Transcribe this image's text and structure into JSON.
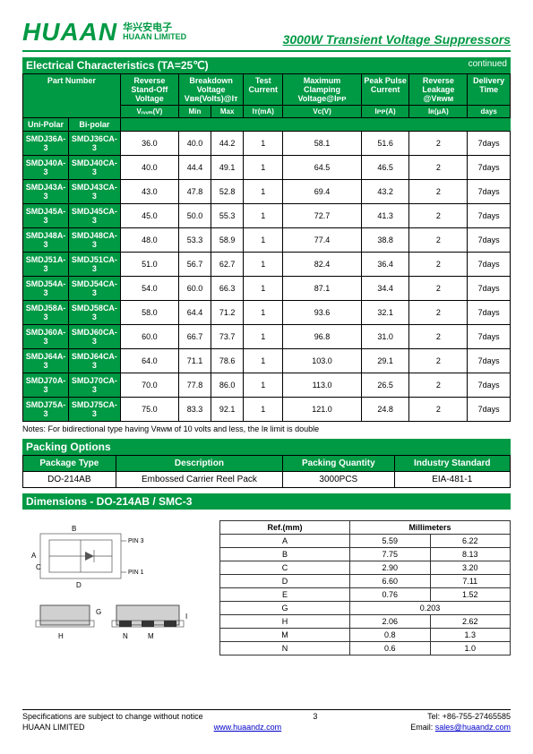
{
  "header": {
    "logo": "HUAAN",
    "cn": "华兴安电子",
    "en": "HUAAN LIMITED",
    "title": "3000W Transient Voltage Suppressors"
  },
  "elec": {
    "sectionTitle": "Electrical  Characteristics  (TA=25℃)",
    "continued": "continued",
    "headers": {
      "partNumber": "Part  Number",
      "uniPolar": "Uni-Polar",
      "biPolar": "Bi-polar",
      "reverseStandoff": "Reverse Stand-Off Voltage",
      "vrwm": "Vᵣᵥᵥₘ(V)",
      "breakdown": "Breakdown Voltage",
      "vbr": "Vʙʀ(Volts)@Iᴛ",
      "min": "Min",
      "max": "Max",
      "testCurrent": "Test Current",
      "it": "Iᴛ(mA)",
      "maxClamp": "Maximum Clamping Voltage@Iᴘᴘ",
      "vc": "Vᴄ(V)",
      "peakPulse": "Peak Pulse Current",
      "ipp": "Iᴘᴘ(A)",
      "reverseLeakage": "Reverse Leakage @Vʀᴡᴍ",
      "ir": "Iʀ(μA)",
      "delivery": "Delivery Time",
      "days": "days"
    },
    "rows": [
      {
        "uni": "SMDJ36A-3",
        "bi": "SMDJ36CA-3",
        "v": "36.0",
        "min": "40.0",
        "max": "44.2",
        "it": "1",
        "vc": "58.1",
        "ipp": "51.6",
        "ir": "2",
        "d": "7days"
      },
      {
        "uni": "SMDJ40A-3",
        "bi": "SMDJ40CA-3",
        "v": "40.0",
        "min": "44.4",
        "max": "49.1",
        "it": "1",
        "vc": "64.5",
        "ipp": "46.5",
        "ir": "2",
        "d": "7days"
      },
      {
        "uni": "SMDJ43A-3",
        "bi": "SMDJ43CA-3",
        "v": "43.0",
        "min": "47.8",
        "max": "52.8",
        "it": "1",
        "vc": "69.4",
        "ipp": "43.2",
        "ir": "2",
        "d": "7days"
      },
      {
        "uni": "SMDJ45A-3",
        "bi": "SMDJ45CA-3",
        "v": "45.0",
        "min": "50.0",
        "max": "55.3",
        "it": "1",
        "vc": "72.7",
        "ipp": "41.3",
        "ir": "2",
        "d": "7days"
      },
      {
        "uni": "SMDJ48A-3",
        "bi": "SMDJ48CA-3",
        "v": "48.0",
        "min": "53.3",
        "max": "58.9",
        "it": "1",
        "vc": "77.4",
        "ipp": "38.8",
        "ir": "2",
        "d": "7days"
      },
      {
        "uni": "SMDJ51A-3",
        "bi": "SMDJ51CA-3",
        "v": "51.0",
        "min": "56.7",
        "max": "62.7",
        "it": "1",
        "vc": "82.4",
        "ipp": "36.4",
        "ir": "2",
        "d": "7days"
      },
      {
        "uni": "SMDJ54A-3",
        "bi": "SMDJ54CA-3",
        "v": "54.0",
        "min": "60.0",
        "max": "66.3",
        "it": "1",
        "vc": "87.1",
        "ipp": "34.4",
        "ir": "2",
        "d": "7days"
      },
      {
        "uni": "SMDJ58A-3",
        "bi": "SMDJ58CA-3",
        "v": "58.0",
        "min": "64.4",
        "max": "71.2",
        "it": "1",
        "vc": "93.6",
        "ipp": "32.1",
        "ir": "2",
        "d": "7days"
      },
      {
        "uni": "SMDJ60A-3",
        "bi": "SMDJ60CA-3",
        "v": "60.0",
        "min": "66.7",
        "max": "73.7",
        "it": "1",
        "vc": "96.8",
        "ipp": "31.0",
        "ir": "2",
        "d": "7days"
      },
      {
        "uni": "SMDJ64A-3",
        "bi": "SMDJ64CA-3",
        "v": "64.0",
        "min": "71.1",
        "max": "78.6",
        "it": "1",
        "vc": "103.0",
        "ipp": "29.1",
        "ir": "2",
        "d": "7days"
      },
      {
        "uni": "SMDJ70A-3",
        "bi": "SMDJ70CA-3",
        "v": "70.0",
        "min": "77.8",
        "max": "86.0",
        "it": "1",
        "vc": "113.0",
        "ipp": "26.5",
        "ir": "2",
        "d": "7days"
      },
      {
        "uni": "SMDJ75A-3",
        "bi": "SMDJ75CA-3",
        "v": "75.0",
        "min": "83.3",
        "max": "92.1",
        "it": "1",
        "vc": "121.0",
        "ipp": "24.8",
        "ir": "2",
        "d": "7days"
      }
    ],
    "note": "Notes: For bidirectional type having Vʀᴡᴍ of 10 volts and less, the Iʀ limit is double"
  },
  "packing": {
    "sectionTitle": "Packing Options",
    "headers": {
      "pkg": "Package Type",
      "desc": "Description",
      "qty": "Packing  Quantity",
      "std": "Industry Standard"
    },
    "row": {
      "pkg": "DO-214AB",
      "desc": "Embossed Carrier Reel Pack",
      "qty": "3000PCS",
      "std": "EIA-481-1"
    }
  },
  "dims": {
    "sectionTitle": "Dimensions - DO-214AB / SMC-3",
    "pin3": "PIN 3",
    "pin1": "PIN 1",
    "labels": {
      "B": "B",
      "D": "D",
      "A": "A",
      "C": "C",
      "G": "G",
      "H": "H",
      "I": "I",
      "N": "N",
      "M": "M"
    },
    "tableHeader": {
      "ref": "Ref.(mm)",
      "mm": "Millimeters"
    },
    "rows": [
      {
        "r": "A",
        "a": "5.59",
        "b": "6.22"
      },
      {
        "r": "B",
        "a": "7.75",
        "b": "8.13"
      },
      {
        "r": "C",
        "a": "2.90",
        "b": "3.20"
      },
      {
        "r": "D",
        "a": "6.60",
        "b": "7.11"
      },
      {
        "r": "E",
        "a": "0.76",
        "b": "1.52"
      },
      {
        "r": "G",
        "a": "0.203",
        "b": ""
      },
      {
        "r": "H",
        "a": "2.06",
        "b": "2.62"
      },
      {
        "r": "M",
        "a": "0.8",
        "b": "1.3"
      },
      {
        "r": "N",
        "a": "0.6",
        "b": "1.0"
      }
    ]
  },
  "footer": {
    "spec": "Specifications are subject to change without notice",
    "page": "3",
    "tel": "Tel:  +86-755-27465585",
    "company": "HUAAN LIMITED",
    "web": "www.huaandz.com",
    "emailLabel": "Email:  ",
    "email": "sales@huaandz.com"
  }
}
